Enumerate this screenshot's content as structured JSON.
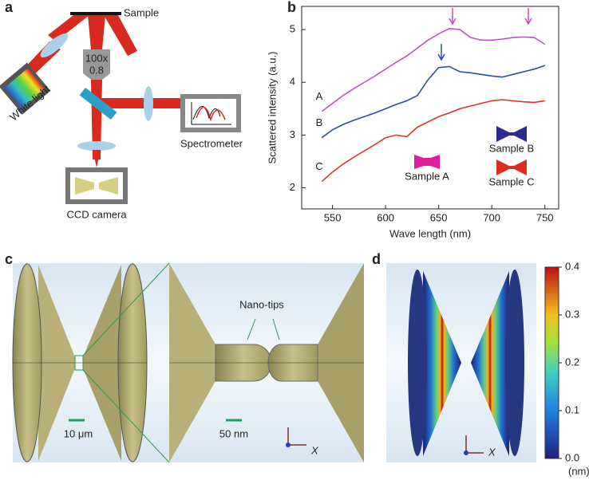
{
  "panel_labels": [
    "a",
    "b",
    "c",
    "d"
  ],
  "setup": {
    "sample": "Sample",
    "objective_mag": "100x",
    "objective_na": "0.8",
    "white_light": "White light",
    "spectrometer": "Spectrometer",
    "camera": "CCD camera"
  },
  "model": {
    "nano_tips": "Nano-tips",
    "scale_left": "10 μm",
    "scale_right": "50 nm",
    "axis": "X"
  },
  "field": {
    "colorbar_lim": [
      0,
      0.4
    ],
    "colorbar_ticks": [
      {
        "value": 0,
        "label": "0.0"
      },
      0.1,
      0.2,
      0.3,
      0.4
    ],
    "unit": "(nm)",
    "axis": "X"
  },
  "chart_data": {
    "type": "line",
    "xlabel": "Wave length (nm)",
    "ylabel": "Scattered intensity (a.u.)",
    "xlim": [
      521,
      763
    ],
    "ylim": [
      1.6,
      5.44
    ],
    "xticks": [
      550,
      600,
      650,
      700,
      750
    ],
    "yticks": [
      2,
      3,
      4,
      5
    ],
    "x": [
      540,
      550,
      560,
      570,
      580,
      590,
      600,
      610,
      620,
      630,
      640,
      650,
      660,
      670,
      680,
      690,
      700,
      710,
      720,
      730,
      740,
      750
    ],
    "series": [
      {
        "name": "A",
        "color": "#c050c8",
        "values": [
          3.45,
          3.6,
          3.75,
          3.88,
          4.0,
          4.12,
          4.25,
          4.38,
          4.5,
          4.65,
          4.8,
          4.92,
          5.02,
          5.0,
          4.85,
          4.8,
          4.8,
          4.82,
          4.85,
          4.86,
          4.85,
          4.72
        ]
      },
      {
        "name": "B",
        "color": "#2a4ea0",
        "values": [
          2.95,
          3.1,
          3.2,
          3.28,
          3.35,
          3.42,
          3.5,
          3.58,
          3.65,
          3.75,
          4.05,
          4.28,
          4.3,
          4.2,
          4.18,
          4.15,
          4.12,
          4.1,
          4.15,
          4.2,
          4.25,
          4.32
        ]
      },
      {
        "name": "C",
        "color": "#d83a2a",
        "values": [
          2.12,
          2.3,
          2.45,
          2.58,
          2.7,
          2.82,
          2.95,
          3.0,
          2.97,
          3.15,
          3.25,
          3.35,
          3.42,
          3.5,
          3.55,
          3.6,
          3.65,
          3.67,
          3.65,
          3.63,
          3.62,
          3.65
        ]
      }
    ],
    "samples": [
      {
        "label": "Sample A",
        "color": "#e0209a"
      },
      {
        "label": "Sample B",
        "color": "#2c2a8c"
      },
      {
        "label": "Sample C",
        "color": "#d8301c"
      }
    ]
  }
}
